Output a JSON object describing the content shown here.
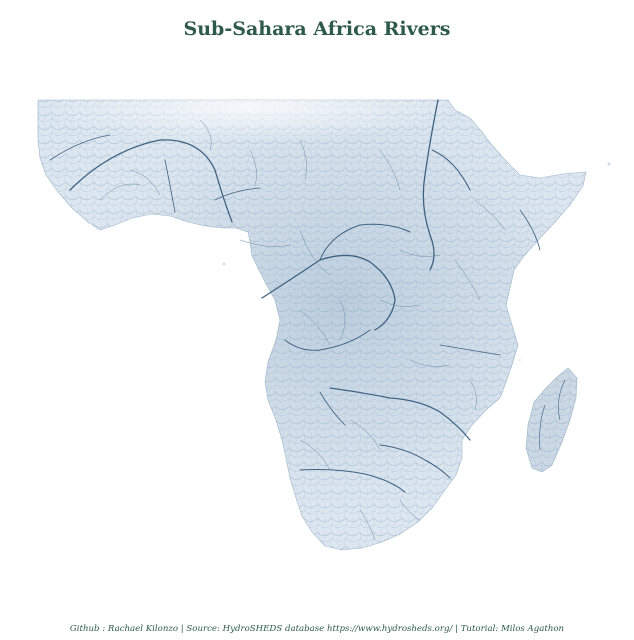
{
  "title": "Sub-Sahara Africa Rivers",
  "caption": "Github : Rachael Kilonzo | Source: HydroSHEDS database https://www.hydrosheds.org/ | Tutorial: Milos Agathon",
  "colors": {
    "title": "#2d5a4a",
    "land_light": "#e8eff6",
    "land_mid": "#c9d8e6",
    "river_minor": "#a9bfd3",
    "river_major": "#3e6384",
    "background": "#ffffff"
  },
  "map": {
    "region": "Sub-Saharan Africa",
    "islands": [
      "Madagascar"
    ],
    "layer": "river network"
  }
}
